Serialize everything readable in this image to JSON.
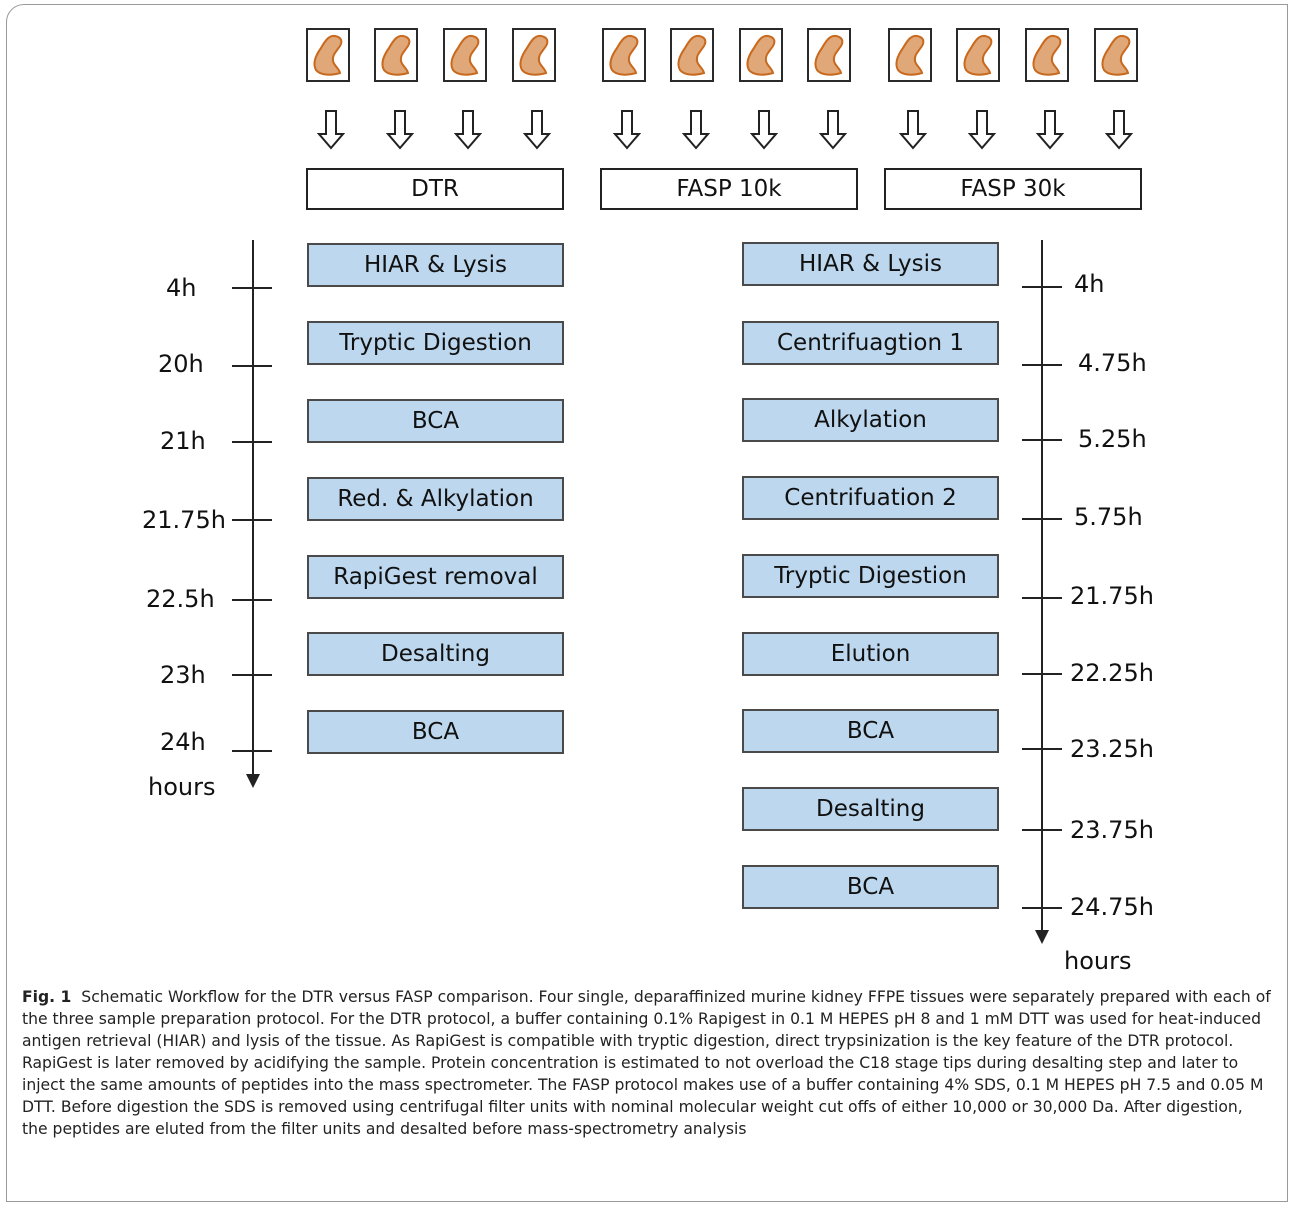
{
  "groups": [
    "DTR",
    "FASP 10k",
    "FASP 30k"
  ],
  "dtr_steps": [
    "HIAR & Lysis",
    "Tryptic Digestion",
    "BCA",
    "Red. & Alkylation",
    "RapiGest removal",
    "Desalting",
    "BCA"
  ],
  "dtr_times": [
    "4h",
    "20h",
    "21h",
    "21.75h",
    "22.5h",
    "23h",
    "24h"
  ],
  "fasp_steps": [
    "HIAR & Lysis",
    "Centrifuagtion 1",
    "Alkylation",
    "Centrifuation 2",
    "Tryptic Digestion",
    "Elution",
    "BCA",
    "Desalting",
    "BCA"
  ],
  "fasp_times": [
    "4h",
    "4.75h",
    "5.25h",
    "5.75h",
    "21.75h",
    "22.25h",
    "23.25h",
    "23.75h",
    "24.75h"
  ],
  "axis_unit": "hours",
  "caption": {
    "label": "Fig. 1",
    "text": "Schematic Workflow for the DTR versus FASP comparison. Four single, deparaffinized murine kidney FFPE tissues were separately prepared with each of the three sample preparation protocol. For the DTR protocol, a buffer containing 0.1% Rapigest in 0.1 M HEPES pH 8 and 1 mM DTT was used for heat-induced antigen retrieval (HIAR) and lysis of the tissue. As RapiGest is compatible with tryptic digestion, direct trypsinization is the key feature of the DTR protocol. RapiGest is later removed by acidifying the sample. Protein concentration is estimated to not overload the C18 stage tips during desalting step and later to inject the same amounts of peptides into the mass spectrometer. The FASP protocol makes use of a buffer containing 4% SDS, 0.1 M HEPES pH 7.5 and 0.05 M DTT. Before digestion the SDS is removed using centrifugal filter units with nominal molecular weight cut offs of either 10,000 or 30,000 Da. After digestion, the peptides are eluted from the filter units and desalted before mass-spectrometry analysis"
  },
  "colors": {
    "tissue_fill": "#e0a878",
    "tissue_stroke": "#c8691e",
    "step_fill": "#bcd7ee"
  }
}
